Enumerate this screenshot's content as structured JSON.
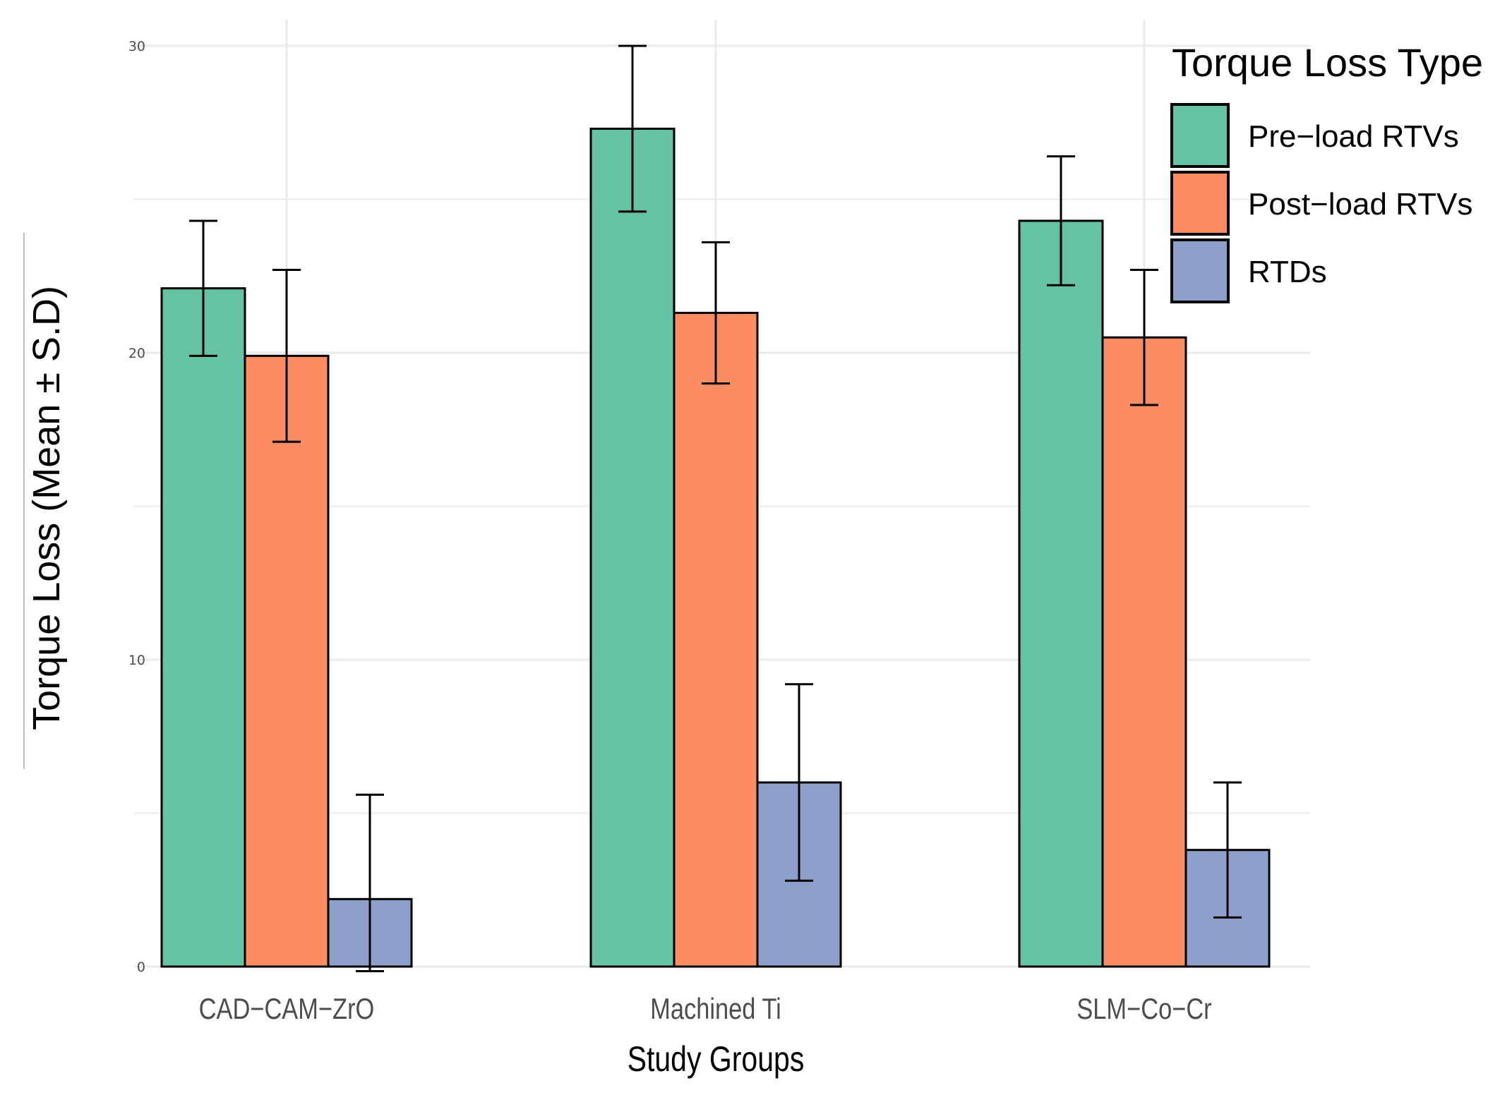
{
  "chart_data": {
    "type": "bar",
    "title": "",
    "xlabel": "Study Groups",
    "ylabel": "Torque Loss (Mean ± S.D)",
    "ylim": [
      0,
      30
    ],
    "yticks": [
      0,
      10,
      20,
      30
    ],
    "grid": true,
    "categories": [
      "CAD−CAM−ZrO",
      "Machined Ti",
      "SLM−Co−Cr"
    ],
    "legend": {
      "title": "Torque Loss Type",
      "position": "top-right"
    },
    "series": [
      {
        "name": "Pre−load RTVs",
        "color": "#66c2a5",
        "values": [
          22.1,
          27.3,
          24.3
        ],
        "errors": [
          2.2,
          2.7,
          2.1
        ]
      },
      {
        "name": "Post−load RTVs",
        "color": "#fc8d62",
        "values": [
          19.9,
          21.3,
          20.5
        ],
        "errors": [
          2.8,
          2.3,
          2.2
        ]
      },
      {
        "name": "RTDs",
        "color": "#8da0cb",
        "values": [
          2.2,
          6.0,
          3.8
        ],
        "errors": [
          3.4,
          3.2,
          2.2
        ]
      }
    ]
  }
}
